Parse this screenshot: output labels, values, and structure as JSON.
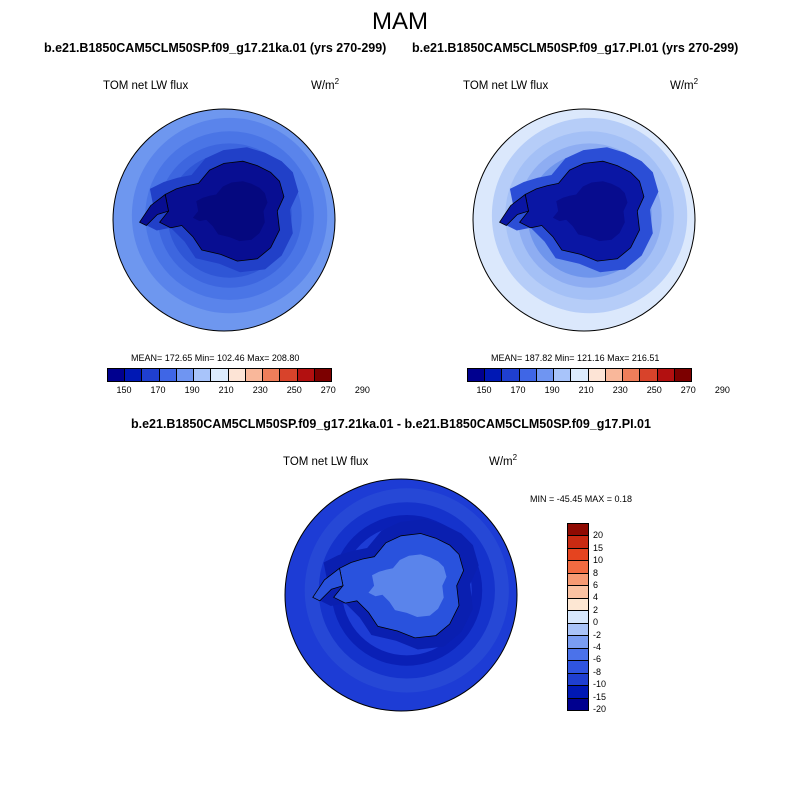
{
  "figure": {
    "season": "MAM",
    "left_title": "b.e21.B1850CAM5CLM50SP.f09_g17.21ka.01 (yrs 270-299)",
    "right_title": "b.e21.B1850CAM5CLM50SP.f09_g17.PI.01 (yrs 270-299)",
    "diff_title": "b.e21.B1850CAM5CLM50SP.f09_g17.21ka.01 - b.e21.B1850CAM5CLM50SP.f09_g17.PI.01"
  },
  "panels": {
    "left": {
      "variable": "TOM net LW flux",
      "units": "W/m",
      "units_sup": "2",
      "stats": "MEAN= 172.65  Min= 102.46  Max= 208.80"
    },
    "right": {
      "variable": "TOM net LW flux",
      "units": "W/m",
      "units_sup": "2",
      "stats": "MEAN= 187.82  Min= 121.16  Max= 216.51"
    },
    "diff": {
      "variable": "TOM net LW flux",
      "units": "W/m",
      "units_sup": "2",
      "stats": "MIN = -45.45 MAX =   0.18"
    }
  },
  "colorbars": {
    "absolute": {
      "colors": [
        "#00008f",
        "#0018b4",
        "#1f3fd0",
        "#3f66e6",
        "#6f95f2",
        "#a8c4fa",
        "#dcebfd",
        "#fde4d6",
        "#f9b79a",
        "#ef7e5a",
        "#d8432b",
        "#b21010",
        "#7c0000"
      ],
      "ticks": [
        "150",
        "170",
        "190",
        "210",
        "230",
        "250",
        "270",
        "290"
      ]
    },
    "difference": {
      "colors": [
        "#00008f",
        "#0018b4",
        "#1f3fd0",
        "#2f54e0",
        "#4b72ea",
        "#7a9df2",
        "#a9c3f8",
        "#d7e7fc",
        "#fde7d3",
        "#fbc2a2",
        "#f79a73",
        "#f26b41",
        "#e5441f",
        "#c92a12",
        "#8f0a02"
      ],
      "ticks": [
        "-20",
        "-15",
        "-10",
        "-8",
        "-6",
        "-4",
        "-2",
        "0",
        "2",
        "4",
        "6",
        "8",
        "10",
        "15",
        "20"
      ]
    }
  },
  "map_style": {
    "left": {
      "ocean_outer": "#6e97ef",
      "rings": [
        "#5a84eb",
        "#4a75e6",
        "#3d66df",
        "#2f56d6"
      ],
      "shelf": "#2140c8",
      "continent": "#080e92",
      "interior": "#05087f"
    },
    "right": {
      "ocean_outer": "#dbe8fc",
      "rings": [
        "#b6cdf8",
        "#a4c0f6",
        "#8eadf2",
        "#6f95ec"
      ],
      "shelf": "#2b4ed6",
      "continent": "#0a16a4",
      "interior": "#070c8e"
    },
    "diff": {
      "ocean_outer": "#1d3cd5",
      "rings": [
        "#2648d6",
        "#1533cc",
        "#0a20b6",
        "#1d3cd5"
      ],
      "shelf": "#0a1fb0",
      "continent": "#2952dd",
      "interior": "#5a84eb"
    }
  }
}
